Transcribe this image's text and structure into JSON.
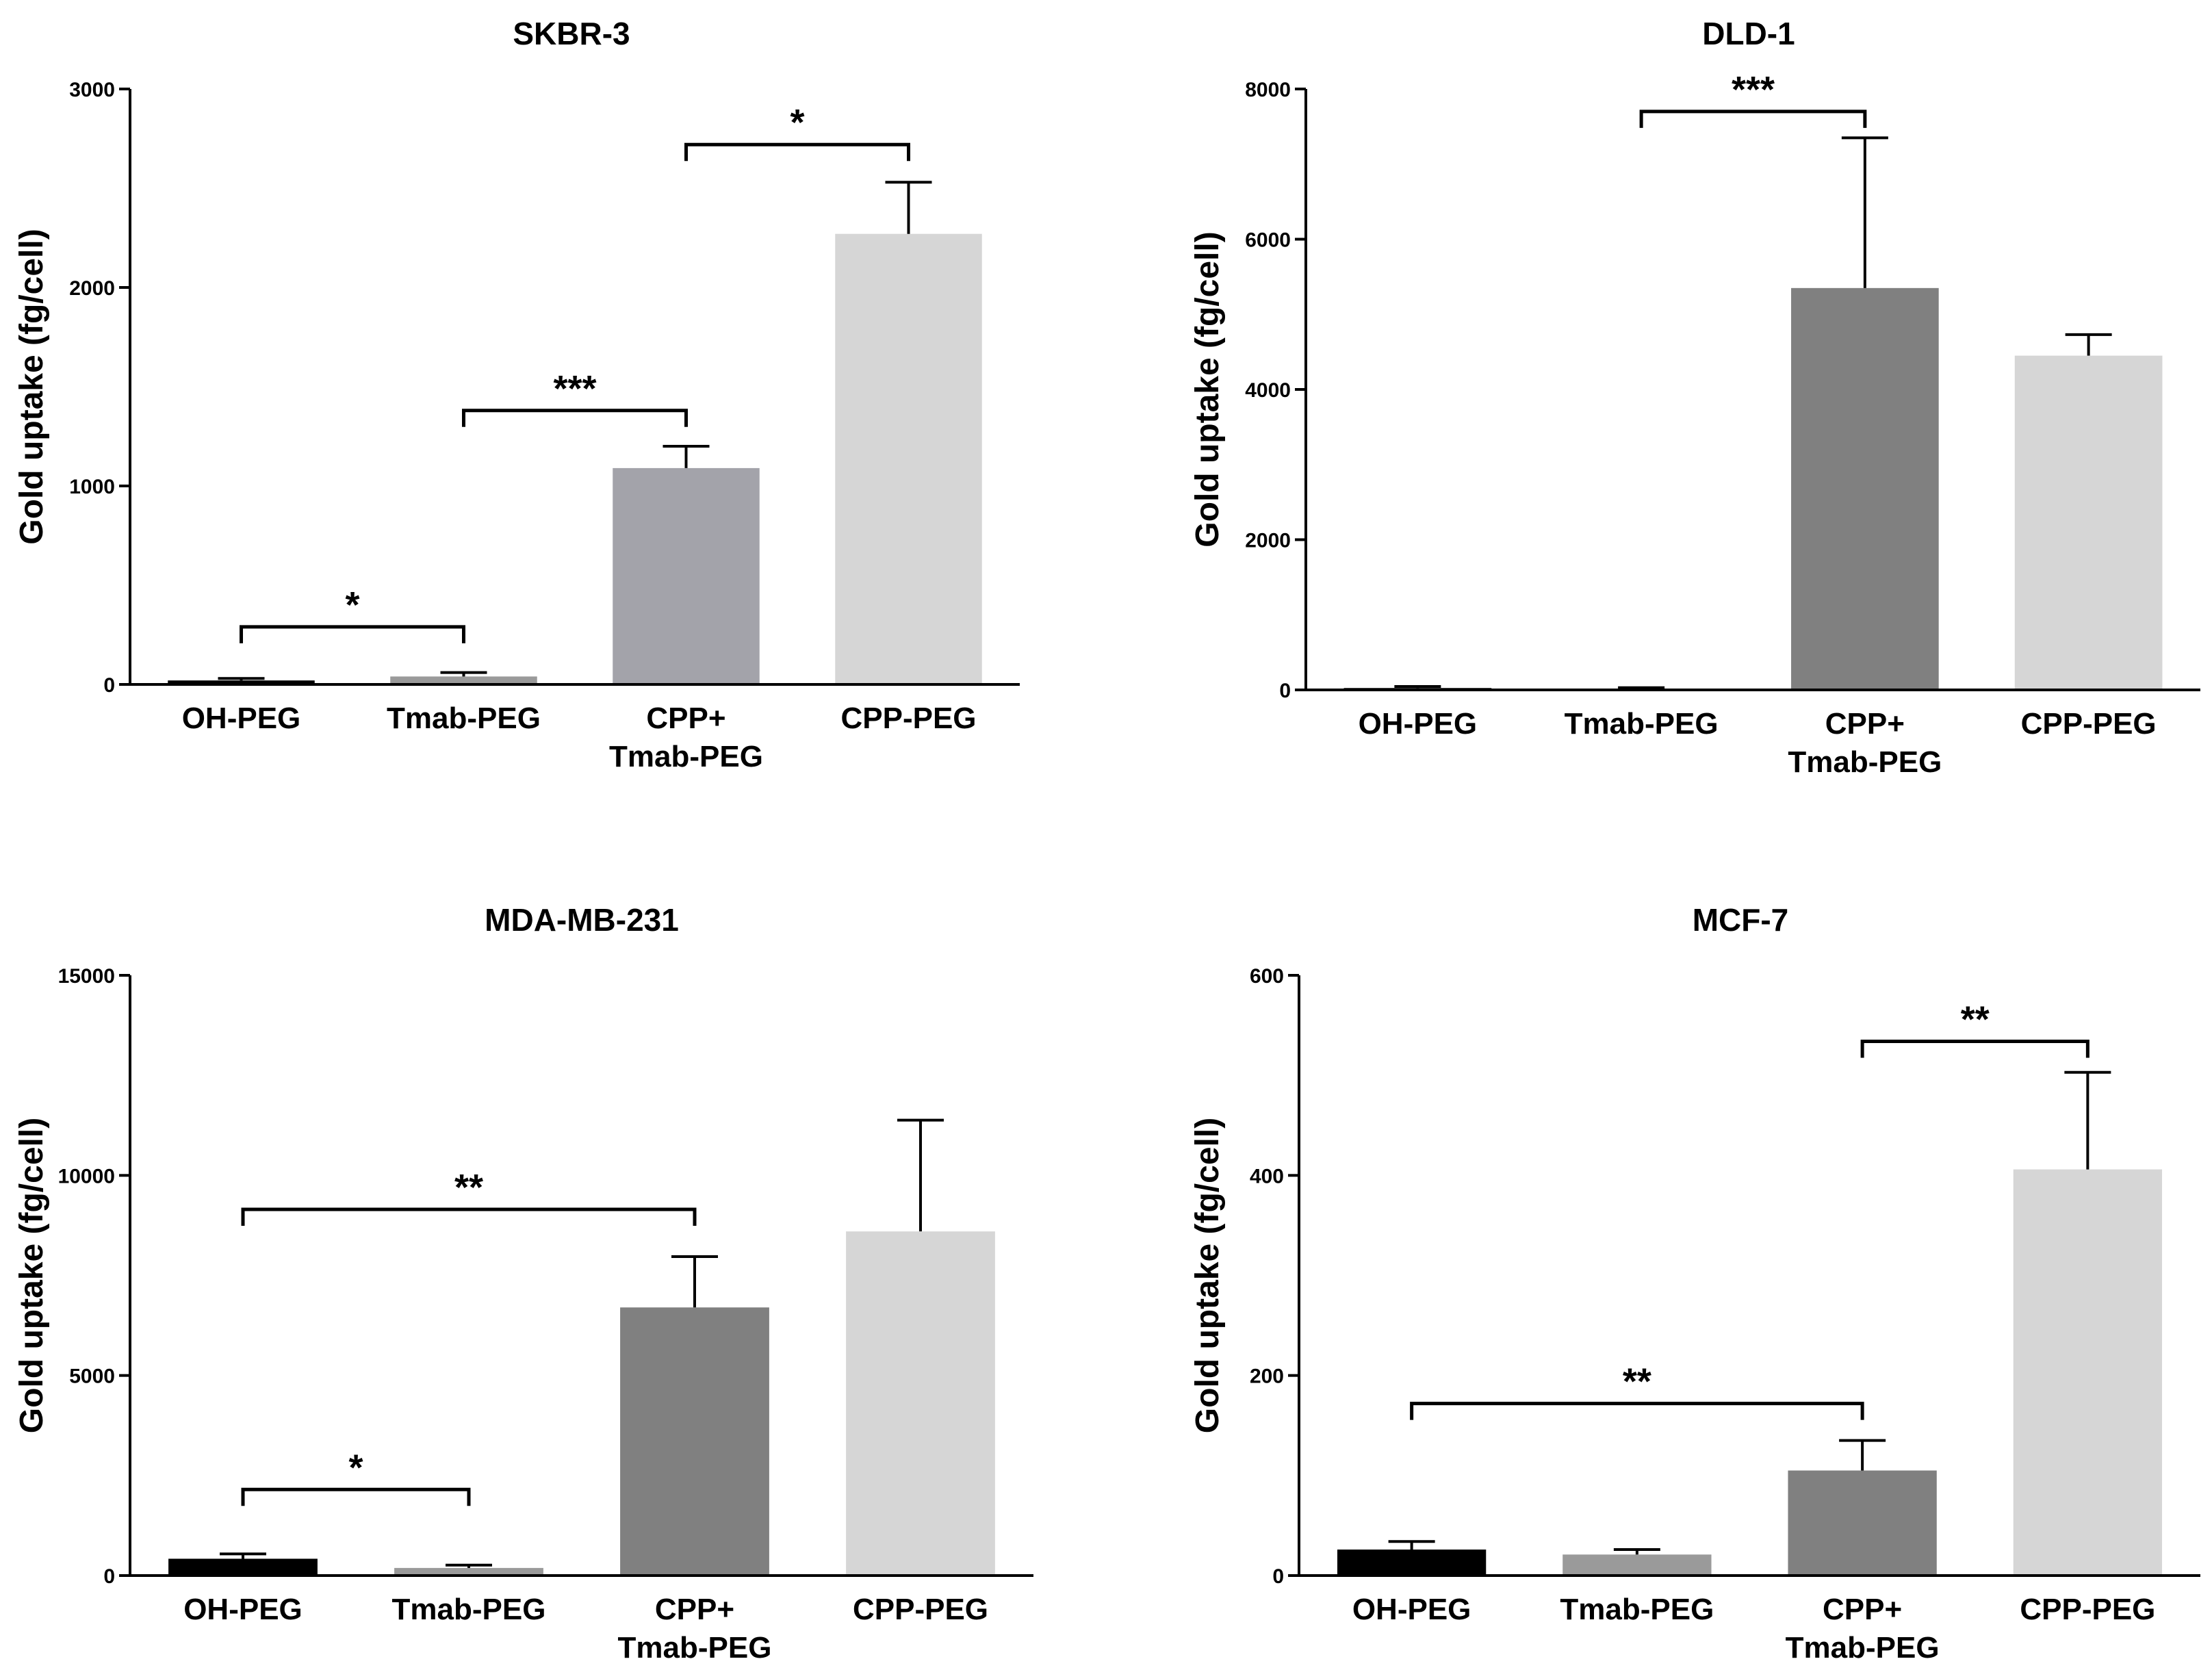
{
  "chart_data": [
    {
      "type": "bar",
      "title": "SKBR-3",
      "ylabel": "Gold uptake (fg/cell)",
      "xlabel": "",
      "ylim": [
        0,
        3000
      ],
      "yticks": [
        0,
        1000,
        2000,
        3000
      ],
      "yticklabels": [
        "0",
        "1000",
        "2000",
        "3000"
      ],
      "categories": [
        "OH-PEG",
        "Tmab-PEG",
        "CPP+ Tmab-PEG",
        "CPP-PEG"
      ],
      "category_lines": [
        [
          "OH-PEG"
        ],
        [
          "Tmab-PEG"
        ],
        [
          "CPP+",
          "Tmab-PEG"
        ],
        [
          "CPP-PEG"
        ]
      ],
      "values": [
        20,
        40,
        1090,
        2270
      ],
      "errors": [
        10,
        20,
        110,
        260
      ],
      "colors": [
        "#000000",
        "#9a9a9a",
        "#a3a3aa",
        "#d6d6d6"
      ],
      "significance": [
        {
          "from": 0,
          "to": 1,
          "y": 290,
          "label": "*"
        },
        {
          "from": 1,
          "to": 2,
          "y": 1380,
          "label": "***"
        },
        {
          "from": 2,
          "to": 3,
          "y": 2720,
          "label": "*"
        }
      ]
    },
    {
      "type": "bar",
      "title": "DLD-1",
      "ylabel": "Gold uptake (fg/cell)",
      "xlabel": "",
      "ylim": [
        0,
        8000
      ],
      "yticks": [
        0,
        2000,
        4000,
        6000,
        8000
      ],
      "yticklabels": [
        "0",
        "2000",
        "4000",
        "6000",
        "8000"
      ],
      "categories": [
        "OH-PEG",
        "Tmab-PEG",
        "CPP+ Tmab-PEG",
        "CPP-PEG"
      ],
      "category_lines": [
        [
          "OH-PEG"
        ],
        [
          "Tmab-PEG"
        ],
        [
          "CPP+",
          "Tmab-PEG"
        ],
        [
          "CPP-PEG"
        ]
      ],
      "values": [
        25,
        15,
        5350,
        4450
      ],
      "errors": [
        20,
        15,
        2000,
        280
      ],
      "colors": [
        "#000000",
        "#8c8c8c",
        "#808080",
        "#d6d6d6"
      ],
      "significance": [
        {
          "from": 1,
          "to": 2,
          "y": 7700,
          "label": "***"
        }
      ]
    },
    {
      "type": "bar",
      "title": "MDA-MB-231",
      "ylabel": "Gold uptake (fg/cell)",
      "xlabel": "",
      "ylim": [
        0,
        15000
      ],
      "yticks": [
        0,
        5000,
        10000,
        15000
      ],
      "yticklabels": [
        "0",
        "5000",
        "10000",
        "15000"
      ],
      "categories": [
        "OH-PEG",
        "Tmab-PEG",
        "CPP+ Tmab-PEG",
        "CPP-PEG"
      ],
      "category_lines": [
        [
          "OH-PEG"
        ],
        [
          "Tmab-PEG"
        ],
        [
          "CPP+",
          "Tmab-PEG"
        ],
        [
          "CPP-PEG"
        ]
      ],
      "values": [
        420,
        190,
        6700,
        8600
      ],
      "errors": [
        120,
        70,
        1270,
        2780
      ],
      "colors": [
        "#000000",
        "#9a9a9a",
        "#808080",
        "#d6d6d6"
      ],
      "significance": [
        {
          "from": 0,
          "to": 2,
          "y": 9150,
          "label": "**"
        },
        {
          "from": 0,
          "to": 1,
          "y": 2150,
          "label": "*"
        }
      ]
    },
    {
      "type": "bar",
      "title": "MCF-7",
      "ylabel": "Gold uptake (fg/cell)",
      "xlabel": "",
      "ylim": [
        0,
        600
      ],
      "yticks": [
        0,
        200,
        400,
        600
      ],
      "yticklabels": [
        "0",
        "200",
        "400",
        "600"
      ],
      "categories": [
        "OH-PEG",
        "Tmab-PEG",
        "CPP+ Tmab-PEG",
        "CPP-PEG"
      ],
      "category_lines": [
        [
          "OH-PEG"
        ],
        [
          "Tmab-PEG"
        ],
        [
          "CPP+",
          "Tmab-PEG"
        ],
        [
          "CPP-PEG"
        ]
      ],
      "values": [
        26,
        21,
        105,
        406
      ],
      "errors": [
        8,
        5,
        30,
        97
      ],
      "colors": [
        "#000000",
        "#9a9a9a",
        "#808080",
        "#d6d6d6"
      ],
      "significance": [
        {
          "from": 0,
          "to": 2,
          "y": 172,
          "label": "**"
        },
        {
          "from": 2,
          "to": 3,
          "y": 534,
          "label": "**"
        }
      ]
    }
  ]
}
